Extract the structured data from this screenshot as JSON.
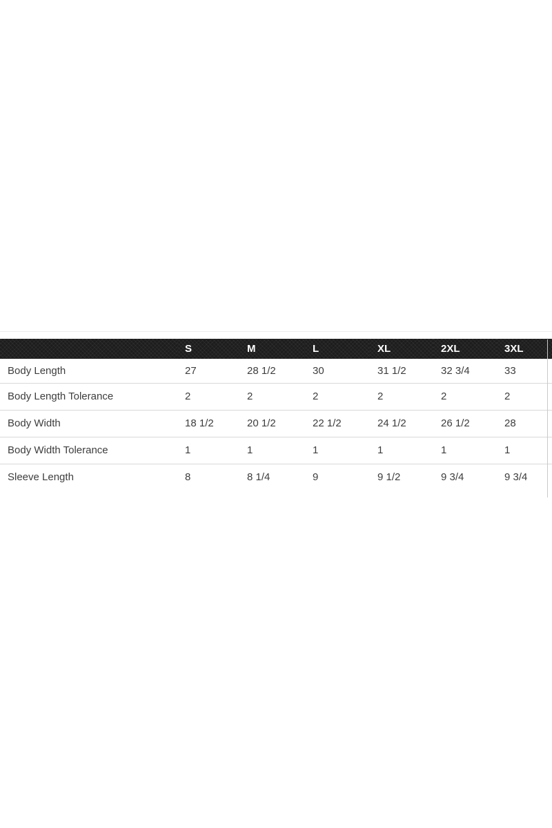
{
  "size_chart": {
    "corner_label": "",
    "columns": [
      "S",
      "M",
      "L",
      "XL",
      "2XL",
      "3XL"
    ],
    "rows": [
      {
        "label": "Body Length",
        "values": [
          "27",
          "28 1/2",
          "30",
          "31 1/2",
          "32 3/4",
          "33"
        ]
      },
      {
        "label": "Body Length Tolerance",
        "values": [
          "2",
          "2",
          "2",
          "2",
          "2",
          "2"
        ]
      },
      {
        "label": "Body Width",
        "values": [
          "18 1/2",
          "20 1/2",
          "22 1/2",
          "24 1/2",
          "26 1/2",
          "28"
        ]
      },
      {
        "label": "Body Width Tolerance",
        "values": [
          "1",
          "1",
          "1",
          "1",
          "1",
          "1"
        ]
      },
      {
        "label": "Sleeve Length",
        "values": [
          "8",
          "8 1/4",
          "9",
          "9 1/2",
          "9 3/4",
          "9 3/4"
        ]
      }
    ],
    "colors": {
      "header_bg": "#1d1d1d",
      "header_text": "#ffffff",
      "body_text": "#3d3d3d",
      "divider": "#d8d8d8",
      "page_bg": "#ffffff"
    }
  }
}
